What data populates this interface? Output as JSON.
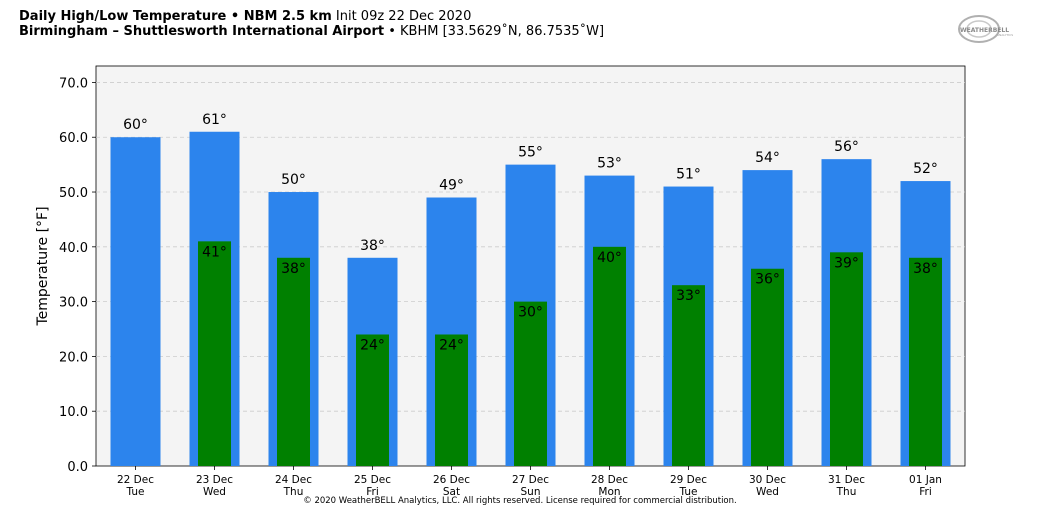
{
  "header": {
    "title_bold": "Daily High/Low Temperature • NBM 2.5 km",
    "title_init": "Init 09z 22 Dec 2020",
    "station_bold": "Birmingham – Shuttlesworth International Airport",
    "station_info": "• KBHM [33.5629˚N, 86.7535˚W]"
  },
  "logo": {
    "text": "WEATHERBELL",
    "sub": "ANALYTICS"
  },
  "copyright": "© 2020 WeatherBELL Analytics, LLC. All rights reserved. License required for commercial distribution.",
  "colors": {
    "high": "#2c84ed",
    "low": "#008000",
    "plot_bg": "#f4f4f4"
  },
  "chart_data": {
    "type": "bar",
    "ylabel": "Temperature [°F]",
    "ylim": [
      0,
      73
    ],
    "yticks": [
      0,
      10,
      20,
      30,
      40,
      50,
      60,
      70
    ],
    "ytick_labels": [
      "0.0",
      "10.0",
      "20.0",
      "30.0",
      "40.0",
      "50.0",
      "60.0",
      "70.0"
    ],
    "grid": true,
    "categories": [
      {
        "date": "22 Dec",
        "day": "Tue"
      },
      {
        "date": "23 Dec",
        "day": "Wed"
      },
      {
        "date": "24 Dec",
        "day": "Thu"
      },
      {
        "date": "25 Dec",
        "day": "Fri"
      },
      {
        "date": "26 Dec",
        "day": "Sat"
      },
      {
        "date": "27 Dec",
        "day": "Sun"
      },
      {
        "date": "28 Dec",
        "day": "Mon"
      },
      {
        "date": "29 Dec",
        "day": "Tue"
      },
      {
        "date": "30 Dec",
        "day": "Wed"
      },
      {
        "date": "31 Dec",
        "day": "Thu"
      },
      {
        "date": "01 Jan",
        "day": "Fri"
      }
    ],
    "series": [
      {
        "key": "high",
        "values": [
          60,
          61,
          50,
          38,
          49,
          55,
          53,
          51,
          54,
          56,
          52
        ],
        "labels": [
          "60°",
          "61°",
          "50°",
          "38°",
          "49°",
          "55°",
          "53°",
          "51°",
          "54°",
          "56°",
          "52°"
        ]
      },
      {
        "key": "low",
        "values": [
          null,
          41,
          38,
          24,
          24,
          30,
          40,
          33,
          36,
          39,
          38
        ],
        "labels": [
          "",
          "41°",
          "38°",
          "24°",
          "24°",
          "30°",
          "40°",
          "33°",
          "36°",
          "39°",
          "38°"
        ]
      }
    ]
  }
}
